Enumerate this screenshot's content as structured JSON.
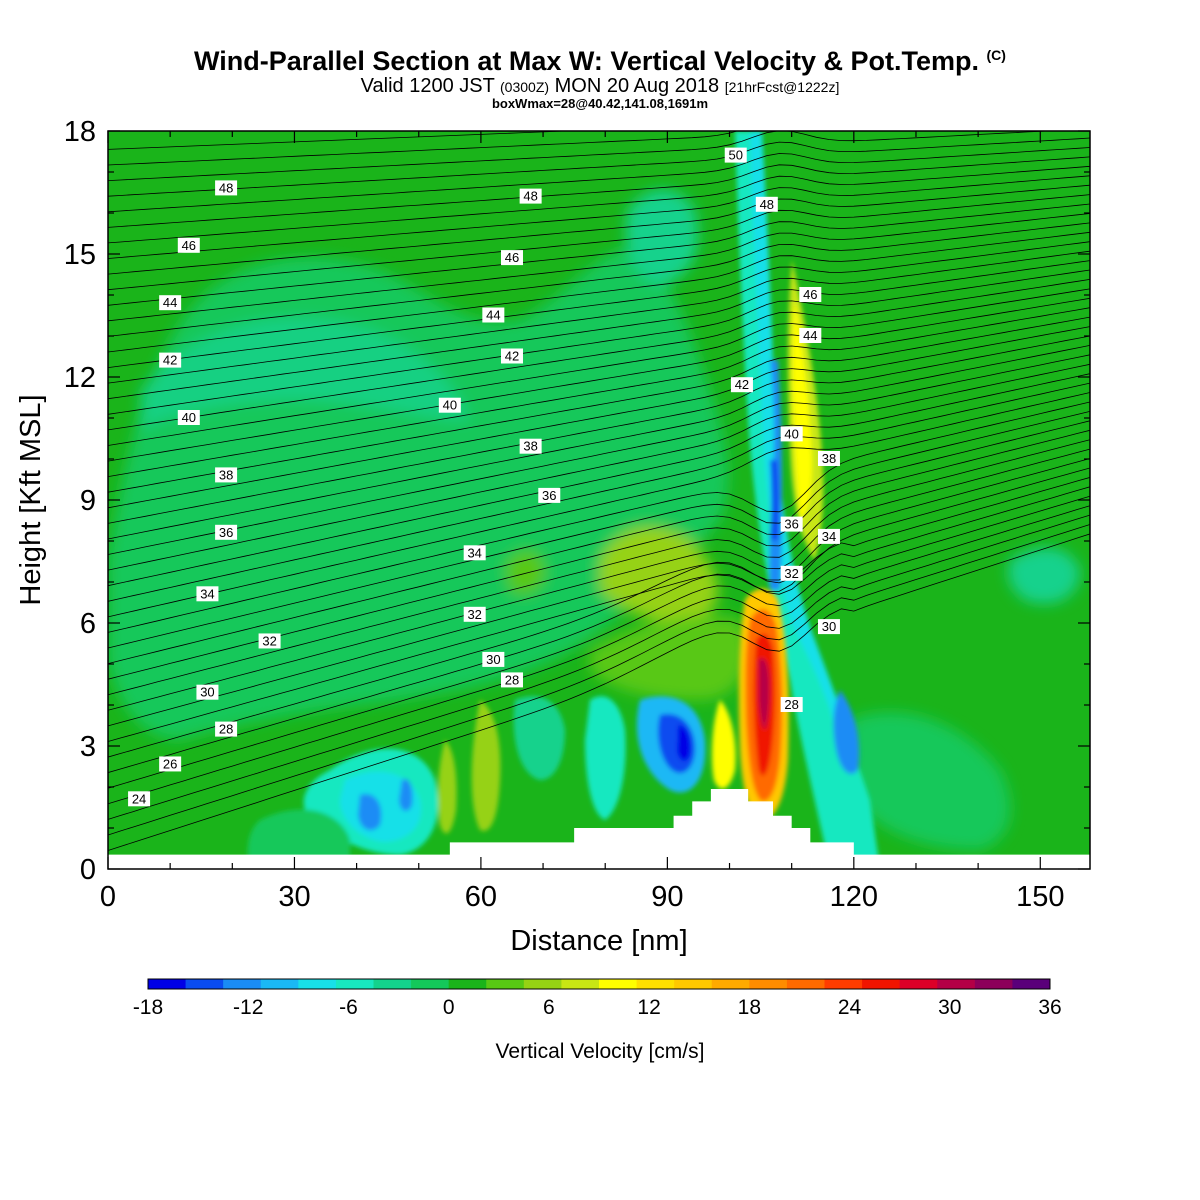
{
  "title": {
    "main": "Wind-Parallel Section at Max W: Vertical Velocity & Pot.Temp.",
    "mark": "(C)",
    "valid_a": "Valid 1200 JST",
    "valid_zulu": "(0300Z)",
    "valid_b": "MON 20 Aug 2018",
    "valid_fcst": "[21hrFcst@1222z]",
    "box": "boxWmax=28@40.42,141.08,1691m"
  },
  "chart_data": {
    "type": "contour",
    "xlabel": "Distance [nm]",
    "ylabel": "Height [Kft MSL]",
    "xlim": [
      0,
      158
    ],
    "ylim": [
      0,
      18
    ],
    "x_ticks": [
      0,
      30,
      60,
      90,
      120,
      150
    ],
    "y_ticks": [
      0,
      3,
      6,
      9,
      12,
      15,
      18
    ],
    "colorbar": {
      "label": "Vertical Velocity [cm/s]",
      "tick_values": [
        -18,
        -12,
        -6,
        0,
        6,
        12,
        18,
        24,
        30,
        36
      ],
      "colors": [
        "#0000e6",
        "#0a4cf0",
        "#1a8cf5",
        "#1ab8f5",
        "#18e0e8",
        "#18e8c0",
        "#14d28c",
        "#14c85a",
        "#1ab41a",
        "#58c814",
        "#96d214",
        "#c8e614",
        "#ffff00",
        "#ffe000",
        "#ffc800",
        "#ffaa00",
        "#ff8c00",
        "#ff6a00",
        "#ff3c00",
        "#f01400",
        "#dc0028",
        "#b40046",
        "#8c005a",
        "#5a007a"
      ]
    },
    "theta_contour_labels": [
      {
        "x": 5,
        "y": 1.7,
        "text": "24"
      },
      {
        "x": 10,
        "y": 2.55,
        "text": "26"
      },
      {
        "x": 19,
        "y": 3.4,
        "text": "28"
      },
      {
        "x": 16,
        "y": 4.3,
        "text": "30"
      },
      {
        "x": 26,
        "y": 5.55,
        "text": "32"
      },
      {
        "x": 16,
        "y": 6.7,
        "text": "34"
      },
      {
        "x": 19,
        "y": 8.2,
        "text": "36"
      },
      {
        "x": 19,
        "y": 9.6,
        "text": "38"
      },
      {
        "x": 13,
        "y": 11.0,
        "text": "40"
      },
      {
        "x": 10,
        "y": 12.4,
        "text": "42"
      },
      {
        "x": 10,
        "y": 13.8,
        "text": "44"
      },
      {
        "x": 13,
        "y": 15.2,
        "text": "46"
      },
      {
        "x": 19,
        "y": 16.6,
        "text": "48"
      },
      {
        "x": 55,
        "y": 11.3,
        "text": "40"
      },
      {
        "x": 62,
        "y": 5.1,
        "text": "30"
      },
      {
        "x": 65,
        "y": 4.6,
        "text": "28"
      },
      {
        "x": 59,
        "y": 6.2,
        "text": "32"
      },
      {
        "x": 59,
        "y": 7.7,
        "text": "34"
      },
      {
        "x": 71,
        "y": 9.1,
        "text": "36"
      },
      {
        "x": 68,
        "y": 10.3,
        "text": "38"
      },
      {
        "x": 65,
        "y": 12.5,
        "text": "42"
      },
      {
        "x": 62,
        "y": 13.5,
        "text": "44"
      },
      {
        "x": 65,
        "y": 14.9,
        "text": "46"
      },
      {
        "x": 68,
        "y": 16.4,
        "text": "48"
      },
      {
        "x": 101,
        "y": 17.4,
        "text": "50"
      },
      {
        "x": 106,
        "y": 16.2,
        "text": "48"
      },
      {
        "x": 113,
        "y": 14.0,
        "text": "46"
      },
      {
        "x": 113,
        "y": 13.0,
        "text": "44"
      },
      {
        "x": 102,
        "y": 11.8,
        "text": "42"
      },
      {
        "x": 110,
        "y": 10.6,
        "text": "40"
      },
      {
        "x": 116,
        "y": 10.0,
        "text": "38"
      },
      {
        "x": 110,
        "y": 8.4,
        "text": "36"
      },
      {
        "x": 116,
        "y": 8.1,
        "text": "34"
      },
      {
        "x": 110,
        "y": 7.2,
        "text": "32"
      },
      {
        "x": 116,
        "y": 5.9,
        "text": "30"
      },
      {
        "x": 110,
        "y": 4.0,
        "text": "28"
      }
    ],
    "terrain_profile": [
      {
        "x": 0,
        "y": 0.35
      },
      {
        "x": 55,
        "y": 0.35
      },
      {
        "x": 55,
        "y": 0.65
      },
      {
        "x": 75,
        "y": 0.65
      },
      {
        "x": 75,
        "y": 1.0
      },
      {
        "x": 91,
        "y": 1.0
      },
      {
        "x": 91,
        "y": 1.3
      },
      {
        "x": 94,
        "y": 1.3
      },
      {
        "x": 94,
        "y": 1.65
      },
      {
        "x": 97,
        "y": 1.65
      },
      {
        "x": 97,
        "y": 1.95
      },
      {
        "x": 103,
        "y": 1.95
      },
      {
        "x": 103,
        "y": 1.65
      },
      {
        "x": 107,
        "y": 1.65
      },
      {
        "x": 107,
        "y": 1.3
      },
      {
        "x": 110,
        "y": 1.3
      },
      {
        "x": 110,
        "y": 1.0
      },
      {
        "x": 113,
        "y": 1.0
      },
      {
        "x": 113,
        "y": 0.65
      },
      {
        "x": 120,
        "y": 0.65
      },
      {
        "x": 120,
        "y": 0.35
      },
      {
        "x": 158,
        "y": 0.35
      }
    ]
  }
}
